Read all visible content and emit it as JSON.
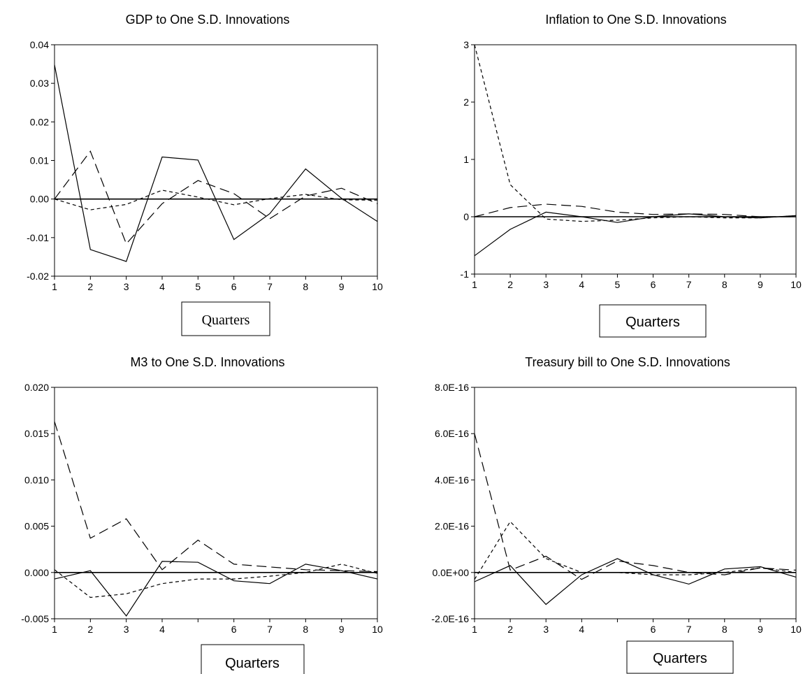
{
  "chart_data": [
    {
      "type": "line",
      "title": "GDP to One S.D. Innovations",
      "xlabel": "Quarters",
      "x": [
        1,
        2,
        3,
        4,
        5,
        6,
        7,
        8,
        9,
        10
      ],
      "x_ticks": [
        "1",
        "2",
        "3",
        "4",
        "5",
        "6",
        "7",
        "8",
        "9",
        "10"
      ],
      "xlim": [
        1,
        10
      ],
      "ylim": [
        -0.02,
        0.04
      ],
      "y_ticks": [
        "-0.02",
        "-0.01",
        "0.00",
        "0.01",
        "0.02",
        "0.03",
        "0.04"
      ],
      "y_tick_values": [
        -0.02,
        -0.01,
        0.0,
        0.01,
        0.02,
        0.03,
        0.04
      ],
      "zero_line": true,
      "grid": false,
      "series": [
        {
          "style": "solid",
          "values": [
            0.0348,
            -0.0131,
            -0.0162,
            0.0109,
            0.0101,
            -0.0105,
            -0.0038,
            0.0078,
            0.0002,
            -0.0058
          ]
        },
        {
          "style": "long-dash",
          "values": [
            0.0,
            0.0124,
            -0.0116,
            -0.0012,
            0.0048,
            0.0014,
            -0.0051,
            0.0008,
            0.0028,
            -0.0012
          ]
        },
        {
          "style": "short-dash",
          "values": [
            0.0,
            -0.0028,
            -0.0014,
            0.0023,
            0.0005,
            -0.0015,
            0.0001,
            0.0012,
            -0.0002,
            -0.0003
          ]
        }
      ]
    },
    {
      "type": "line",
      "title": "Inflation to One S.D. Innovations",
      "xlabel": "Quarters",
      "x": [
        1,
        2,
        3,
        4,
        5,
        6,
        7,
        8,
        9,
        10
      ],
      "x_ticks": [
        "1",
        "2",
        "3",
        "4",
        "5",
        "6",
        "7",
        "8",
        "9",
        "10"
      ],
      "xlim": [
        1,
        10
      ],
      "ylim": [
        -1,
        3
      ],
      "y_ticks": [
        "-1",
        "0",
        "1",
        "2",
        "3"
      ],
      "y_tick_values": [
        -1,
        0,
        1,
        2,
        3
      ],
      "zero_line": true,
      "grid": false,
      "series": [
        {
          "style": "solid",
          "values": [
            -0.68,
            -0.22,
            0.08,
            0.0,
            -0.1,
            0.0,
            0.05,
            0.0,
            -0.02,
            0.02
          ]
        },
        {
          "style": "long-dash",
          "values": [
            0.0,
            0.16,
            0.22,
            0.18,
            0.08,
            0.04,
            0.05,
            0.04,
            0.0,
            0.0
          ]
        },
        {
          "style": "short-dash",
          "values": [
            3.0,
            0.56,
            -0.04,
            -0.08,
            -0.06,
            -0.02,
            0.0,
            -0.02,
            -0.02,
            0.02
          ]
        }
      ]
    },
    {
      "type": "line",
      "title": "M3 to One S.D. Innovations",
      "xlabel": "Quarters",
      "x": [
        1,
        2,
        3,
        4,
        5,
        6,
        7,
        8,
        9,
        10
      ],
      "x_ticks": [
        "1",
        "2",
        "3",
        "4",
        "",
        "6",
        "7",
        "8",
        "9",
        "10"
      ],
      "xlim": [
        1,
        10
      ],
      "ylim": [
        -0.005,
        0.02
      ],
      "y_ticks": [
        "-0.005",
        "0.000",
        "0.005",
        "0.010",
        "0.015",
        "0.020"
      ],
      "y_tick_values": [
        -0.005,
        0.0,
        0.005,
        0.01,
        0.015,
        0.02
      ],
      "zero_line": true,
      "grid": false,
      "series": [
        {
          "style": "solid",
          "values": [
            -0.0007,
            0.0002,
            -0.0047,
            0.0012,
            0.0011,
            -0.0009,
            -0.0012,
            0.0009,
            0.0002,
            -0.0007
          ]
        },
        {
          "style": "long-dash",
          "values": [
            0.0163,
            0.0037,
            0.0058,
            0.0003,
            0.0035,
            0.0009,
            0.0006,
            0.0003,
            0.0002,
            0.0001
          ]
        },
        {
          "style": "short-dash",
          "values": [
            0.0003,
            -0.0027,
            -0.0023,
            -0.0012,
            -0.0007,
            -0.0007,
            -0.0004,
            0.0,
            0.0009,
            -0.0001
          ]
        }
      ]
    },
    {
      "type": "line",
      "title": "Treasury bill to One S.D. Innovations",
      "xlabel": "Quarters",
      "x": [
        1,
        2,
        3,
        4,
        5,
        6,
        7,
        8,
        9,
        10
      ],
      "x_ticks": [
        "1",
        "2",
        "3",
        "4",
        "",
        "6",
        "7",
        "8",
        "9",
        "10"
      ],
      "xlim": [
        1,
        10
      ],
      "ylim": [
        -2e-16,
        8e-16
      ],
      "y_ticks": [
        "-2.0E-16",
        "0.0E+00",
        "2.0E-16",
        "4.0E-16",
        "6.0E-16",
        "8.0E-16"
      ],
      "y_tick_values": [
        -2e-16,
        0.0,
        2e-16,
        4e-16,
        6e-16,
        8e-16
      ],
      "zero_line": true,
      "grid": false,
      "series": [
        {
          "style": "solid",
          "values": [
            -4e-17,
            3e-17,
            -1.38e-16,
            -1e-17,
            6e-17,
            -1e-17,
            -5e-17,
            1.5e-17,
            2.5e-17,
            -2e-17
          ]
        },
        {
          "style": "long-dash",
          "values": [
            6e-16,
            1e-17,
            7e-17,
            -3e-17,
            5e-17,
            3e-17,
            0.0,
            -1e-17,
            2e-17,
            1e-17
          ]
        },
        {
          "style": "short-dash",
          "values": [
            -3e-17,
            2.2e-16,
            6e-17,
            0.0,
            0.0,
            -1e-17,
            -1e-17,
            0.0,
            2e-17,
            0.0
          ]
        }
      ]
    }
  ],
  "colors": {
    "line": "#000000",
    "background": "#ffffff"
  }
}
